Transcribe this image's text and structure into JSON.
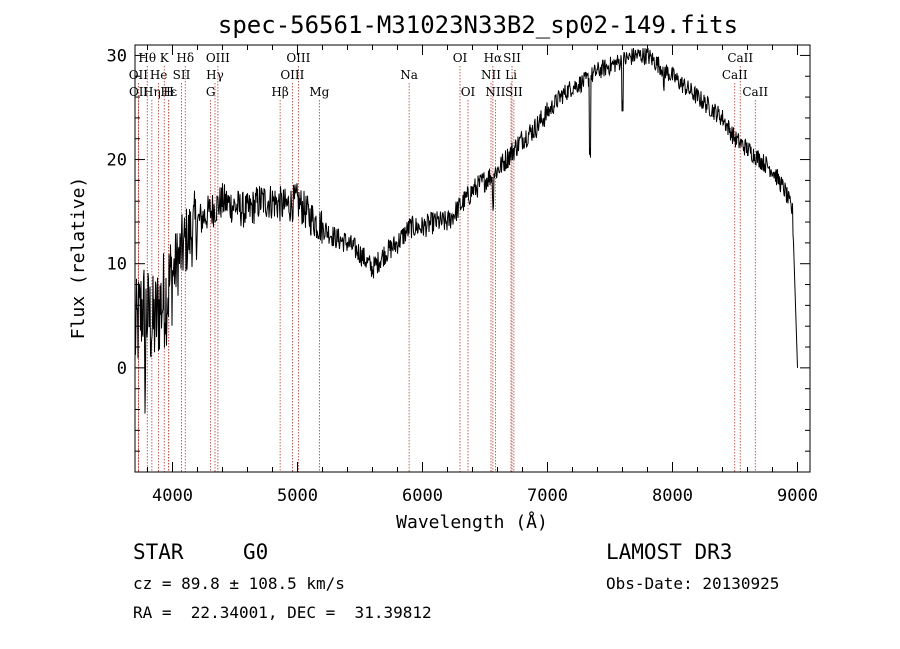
{
  "chart_data": {
    "type": "line",
    "title": "spec-56561-M31023N33B2_sp02-149.fits",
    "xlabel": "Wavelength (Å)",
    "ylabel": "Flux (relative)",
    "xlim": [
      3700,
      9100
    ],
    "ylim": [
      -10,
      31
    ],
    "xticks": [
      4000,
      5000,
      6000,
      7000,
      8000,
      9000
    ],
    "yticks": [
      0,
      10,
      20,
      30
    ],
    "spectrum_anchors": {
      "wavelength": [
        3700,
        3760,
        3800,
        3850,
        3900,
        3950,
        4000,
        4100,
        4200,
        4300,
        4400,
        4500,
        4600,
        4700,
        4800,
        4900,
        5000,
        5100,
        5200,
        5300,
        5400,
        5500,
        5600,
        5700,
        5800,
        5900,
        6000,
        6100,
        6200,
        6300,
        6400,
        6500,
        6600,
        6700,
        6800,
        6900,
        7000,
        7100,
        7200,
        7300,
        7400,
        7500,
        7600,
        7700,
        7800,
        7900,
        8000,
        8100,
        8200,
        8300,
        8400,
        8500,
        8600,
        8700,
        8800,
        8900,
        8960,
        9000
      ],
      "flux": [
        3,
        6,
        5,
        4,
        6,
        7,
        9,
        12,
        14,
        15,
        16,
        15.5,
        15,
        16,
        16,
        15.5,
        16,
        14.5,
        13.5,
        12.5,
        12,
        11,
        9.5,
        11,
        12,
        13.5,
        13.5,
        14,
        14,
        15.5,
        17,
        18,
        19,
        20.5,
        22,
        23,
        24.5,
        26,
        27,
        27.5,
        28.5,
        29,
        29.5,
        30,
        30,
        29,
        28,
        27,
        26,
        25,
        24,
        22,
        21,
        20,
        19,
        17,
        15,
        0
      ]
    },
    "spectral_lines": [
      {
        "label": "Hθ",
        "wavelength": 3798,
        "row": 1
      },
      {
        "label": "OII",
        "wavelength": 3727,
        "row": 2
      },
      {
        "label": "OII",
        "wavelength": 3729,
        "row": 3
      },
      {
        "label": "Hε",
        "wavelength": 3970,
        "row": 3
      },
      {
        "label": "Hη",
        "wavelength": 3835,
        "row": 3
      },
      {
        "label": "He",
        "wavelength": 3889,
        "row": 2
      },
      {
        "label": "K",
        "wavelength": 3934,
        "row": 1
      },
      {
        "label": "H",
        "wavelength": 3969,
        "row": 3
      },
      {
        "label": "SII",
        "wavelength": 4072,
        "row": 2
      },
      {
        "label": "Hδ",
        "wavelength": 4102,
        "row": 1
      },
      {
        "label": "OIII",
        "wavelength": 4363,
        "row": 1
      },
      {
        "label": "Hγ",
        "wavelength": 4340,
        "row": 2
      },
      {
        "label": "G",
        "wavelength": 4305,
        "row": 3
      },
      {
        "label": "Hβ",
        "wavelength": 4861,
        "row": 3
      },
      {
        "label": "OIII",
        "wavelength": 5007,
        "row": 1
      },
      {
        "label": "OIII",
        "wavelength": 4959,
        "row": 2
      },
      {
        "label": "Mg",
        "wavelength": 5175,
        "row": 3
      },
      {
        "label": "Na",
        "wavelength": 5893,
        "row": 2
      },
      {
        "label": "OI",
        "wavelength": 6300,
        "row": 1
      },
      {
        "label": "OI",
        "wavelength": 6364,
        "row": 3
      },
      {
        "label": "Hα",
        "wavelength": 6563,
        "row": 1
      },
      {
        "label": "NII",
        "wavelength": 6548,
        "row": 2
      },
      {
        "label": "NII",
        "wavelength": 6583,
        "row": 3
      },
      {
        "label": "SII",
        "wavelength": 6716,
        "row": 1
      },
      {
        "label": "Li",
        "wavelength": 6708,
        "row": 2
      },
      {
        "label": "SII",
        "wavelength": 6731,
        "row": 3
      },
      {
        "label": "CaII",
        "wavelength": 8542,
        "row": 1
      },
      {
        "label": "CaII",
        "wavelength": 8498,
        "row": 2
      },
      {
        "label": "CaII",
        "wavelength": 8662,
        "row": 3
      }
    ]
  },
  "info": {
    "class": "STAR",
    "subclass": "G0",
    "survey": "LAMOST DR3",
    "cz": "cz = 89.8 ± 108.5 km/s",
    "obs_date": "Obs-Date: 20130925",
    "coords": "RA =  22.34001, DEC =  31.39812"
  },
  "colors": {
    "spectrum": "#000000",
    "line_marker": "#b03a2e",
    "axis": "#000000"
  }
}
